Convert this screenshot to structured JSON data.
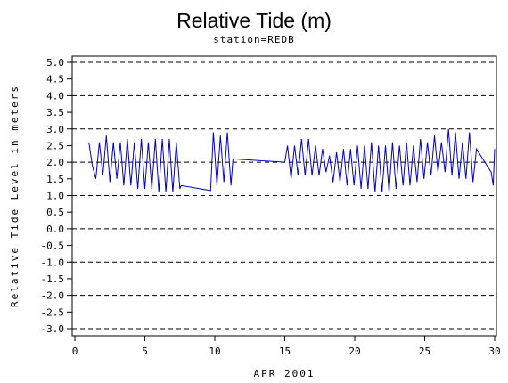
{
  "chart_data": {
    "type": "line",
    "title": "Relative Tide (m)",
    "subtitle": "station=REDB",
    "xlabel": "APR 2001",
    "ylabel": "Relative Tide Level in meters",
    "xlim": [
      0,
      30
    ],
    "ylim": [
      -3.0,
      5.0
    ],
    "x_ticks": [
      0,
      5,
      10,
      15,
      20,
      25,
      30
    ],
    "y_ticks": [
      5.0,
      4.5,
      4.0,
      3.5,
      3.0,
      2.5,
      2.0,
      1.5,
      1.0,
      0.5,
      0.0,
      -0.5,
      -1.0,
      -1.5,
      -2.0,
      -2.5,
      -3.0
    ],
    "y_tick_labels": [
      "5.0",
      "4.5",
      "4.0",
      "3.5",
      "3.0",
      "2.5",
      "2.0",
      "1.5",
      "1.0",
      "0.5",
      "0.0",
      "-0.5",
      "-1.0",
      "-1.5",
      "-2.0",
      "-2.5",
      "-3.0"
    ],
    "grid_lines_y": [
      5,
      4,
      3,
      2,
      1,
      0,
      -1,
      -2,
      -3
    ],
    "grid_style": "dashed",
    "line_color": "#0000cc",
    "series": [
      {
        "values": [
          [
            1.0,
            2.6
          ],
          [
            1.25,
            1.9
          ],
          [
            1.5,
            1.5
          ],
          [
            1.75,
            2.6
          ],
          [
            2.0,
            1.6
          ],
          [
            2.25,
            2.8
          ],
          [
            2.5,
            1.4
          ],
          [
            2.75,
            2.6
          ],
          [
            3.0,
            1.5
          ],
          [
            3.25,
            2.6
          ],
          [
            3.5,
            1.3
          ],
          [
            3.75,
            2.7
          ],
          [
            4.0,
            1.3
          ],
          [
            4.25,
            2.6
          ],
          [
            4.5,
            1.2
          ],
          [
            4.75,
            2.7
          ],
          [
            5.0,
            1.2
          ],
          [
            5.25,
            2.6
          ],
          [
            5.5,
            1.2
          ],
          [
            5.75,
            2.7
          ],
          [
            6.0,
            1.1
          ],
          [
            6.25,
            2.7
          ],
          [
            6.5,
            1.1
          ],
          [
            6.75,
            2.7
          ],
          [
            7.0,
            1.1
          ],
          [
            7.25,
            2.6
          ],
          [
            7.5,
            1.2
          ],
          [
            7.6,
            1.3
          ],
          [
            9.7,
            1.15
          ],
          [
            9.9,
            2.9
          ],
          [
            10.15,
            1.3
          ],
          [
            10.4,
            2.8
          ],
          [
            10.65,
            1.4
          ],
          [
            10.9,
            2.9
          ],
          [
            11.15,
            1.3
          ],
          [
            11.3,
            2.1
          ],
          [
            15.0,
            2.0
          ],
          [
            15.2,
            2.5
          ],
          [
            15.45,
            1.5
          ],
          [
            15.7,
            2.5
          ],
          [
            15.95,
            1.6
          ],
          [
            16.2,
            2.7
          ],
          [
            16.45,
            1.6
          ],
          [
            16.7,
            2.7
          ],
          [
            16.95,
            1.6
          ],
          [
            17.2,
            2.5
          ],
          [
            17.45,
            1.6
          ],
          [
            17.7,
            2.4
          ],
          [
            17.95,
            1.7
          ],
          [
            18.2,
            2.2
          ],
          [
            18.45,
            1.4
          ],
          [
            18.7,
            2.3
          ],
          [
            18.95,
            1.4
          ],
          [
            19.2,
            2.4
          ],
          [
            19.45,
            1.3
          ],
          [
            19.7,
            2.4
          ],
          [
            19.95,
            1.3
          ],
          [
            20.2,
            2.5
          ],
          [
            20.45,
            1.2
          ],
          [
            20.7,
            2.5
          ],
          [
            20.95,
            1.2
          ],
          [
            21.2,
            2.6
          ],
          [
            21.45,
            1.1
          ],
          [
            21.7,
            2.5
          ],
          [
            21.95,
            1.1
          ],
          [
            22.2,
            2.5
          ],
          [
            22.45,
            1.1
          ],
          [
            22.7,
            2.6
          ],
          [
            22.95,
            1.2
          ],
          [
            23.2,
            2.5
          ],
          [
            23.45,
            1.3
          ],
          [
            23.7,
            2.6
          ],
          [
            23.95,
            1.3
          ],
          [
            24.2,
            2.5
          ],
          [
            24.45,
            1.4
          ],
          [
            24.7,
            2.7
          ],
          [
            24.95,
            1.5
          ],
          [
            25.2,
            2.6
          ],
          [
            25.45,
            1.6
          ],
          [
            25.7,
            2.8
          ],
          [
            25.95,
            1.7
          ],
          [
            26.2,
            2.6
          ],
          [
            26.45,
            1.7
          ],
          [
            26.7,
            3.0
          ],
          [
            26.95,
            1.6
          ],
          [
            27.2,
            2.9
          ],
          [
            27.45,
            1.5
          ],
          [
            27.7,
            2.6
          ],
          [
            27.95,
            1.5
          ],
          [
            28.2,
            2.9
          ],
          [
            28.45,
            1.4
          ],
          [
            28.7,
            2.4
          ],
          [
            29.75,
            1.7
          ],
          [
            29.9,
            1.3
          ],
          [
            30.0,
            2.4
          ]
        ]
      }
    ]
  }
}
